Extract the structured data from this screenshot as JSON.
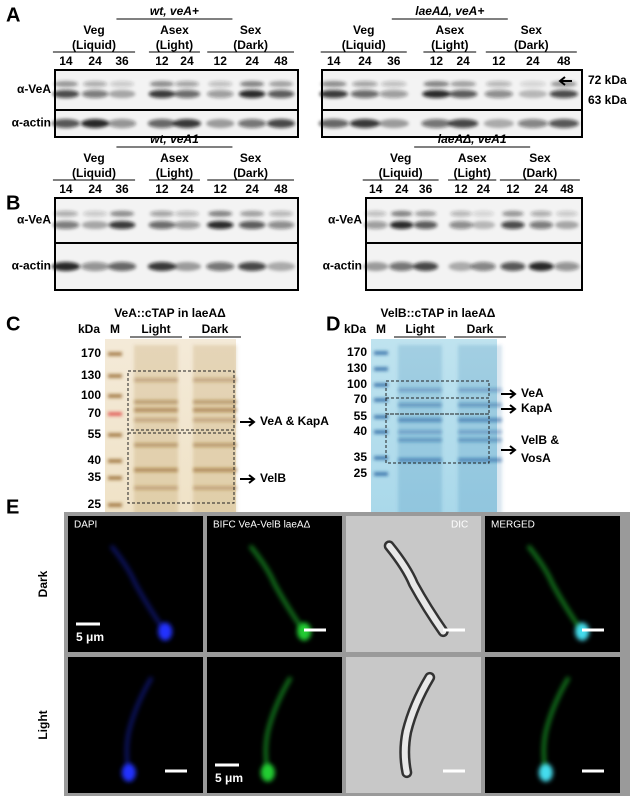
{
  "panel_a": {
    "letter": "A",
    "blots": [
      {
        "strain": "wt, veA+",
        "groups": [
          {
            "name": "Veg",
            "condition": "(Liquid)"
          },
          {
            "name": "Asex",
            "condition": "(Light)"
          },
          {
            "name": "Sex",
            "condition": "(Dark)"
          }
        ],
        "lanes": [
          14,
          24,
          36,
          12,
          24,
          12,
          24,
          48
        ],
        "rows": [
          "α-VeA",
          "α-actin"
        ]
      },
      {
        "strain": "laeAΔ, veA+",
        "groups": [
          {
            "name": "Veg",
            "condition": "(Liquid)"
          },
          {
            "name": "Asex",
            "condition": "(Light)"
          },
          {
            "name": "Sex",
            "condition": "(Dark)"
          }
        ],
        "lanes": [
          14,
          24,
          36,
          12,
          24,
          12,
          24,
          48
        ],
        "markers": [
          "72 kDa",
          "63 kDa"
        ]
      }
    ]
  },
  "panel_b": {
    "letter": "B",
    "blots": [
      {
        "strain": "wt, veA1",
        "groups": [
          {
            "name": "Veg",
            "condition": "(Liquid)"
          },
          {
            "name": "Asex",
            "condition": "(Light)"
          },
          {
            "name": "Sex",
            "condition": "(Dark)"
          }
        ],
        "lanes": [
          14,
          24,
          36,
          12,
          24,
          12,
          24,
          48
        ],
        "rows": [
          "α-VeA",
          "α-actin"
        ]
      },
      {
        "strain": "laeAΔ, veA1",
        "groups": [
          {
            "name": "Veg",
            "condition": "(Liquid)"
          },
          {
            "name": "Asex",
            "condition": "(Light)"
          },
          {
            "name": "Sex",
            "condition": "(Dark)"
          }
        ],
        "lanes": [
          14,
          24,
          36,
          12,
          24,
          12,
          24,
          48
        ],
        "rows": [
          "α-VeA",
          "α-actin"
        ]
      }
    ]
  },
  "panel_c": {
    "letter": "C",
    "title": "VeA::cTAP in laeAΔ",
    "unit": "kDa",
    "marker_lane": "M",
    "lanes": [
      "Light",
      "Dark"
    ],
    "markers": [
      170,
      130,
      100,
      70,
      55,
      40,
      35,
      25
    ],
    "arrows": [
      [
        "VeA & KapA"
      ],
      [
        "VelB"
      ]
    ]
  },
  "panel_d": {
    "letter": "D",
    "title": "VelB::cTAP in laeAΔ",
    "unit": "kDa",
    "marker_lane": "M",
    "lanes": [
      "Light",
      "Dark"
    ],
    "markers": [
      170,
      130,
      100,
      70,
      55,
      40,
      35,
      25
    ],
    "arrows": [
      [
        "VeA"
      ],
      [
        "KapA"
      ],
      [
        "VelB &",
        "VosA"
      ]
    ]
  },
  "panel_e": {
    "letter": "E",
    "columns": [
      "DAPI",
      "BIFC VeA-VelB laeAΔ",
      "DIC",
      "MERGED"
    ],
    "rows": [
      "Dark",
      "Light"
    ],
    "scale_bars": [
      "5 μm",
      "5 μm"
    ]
  }
}
